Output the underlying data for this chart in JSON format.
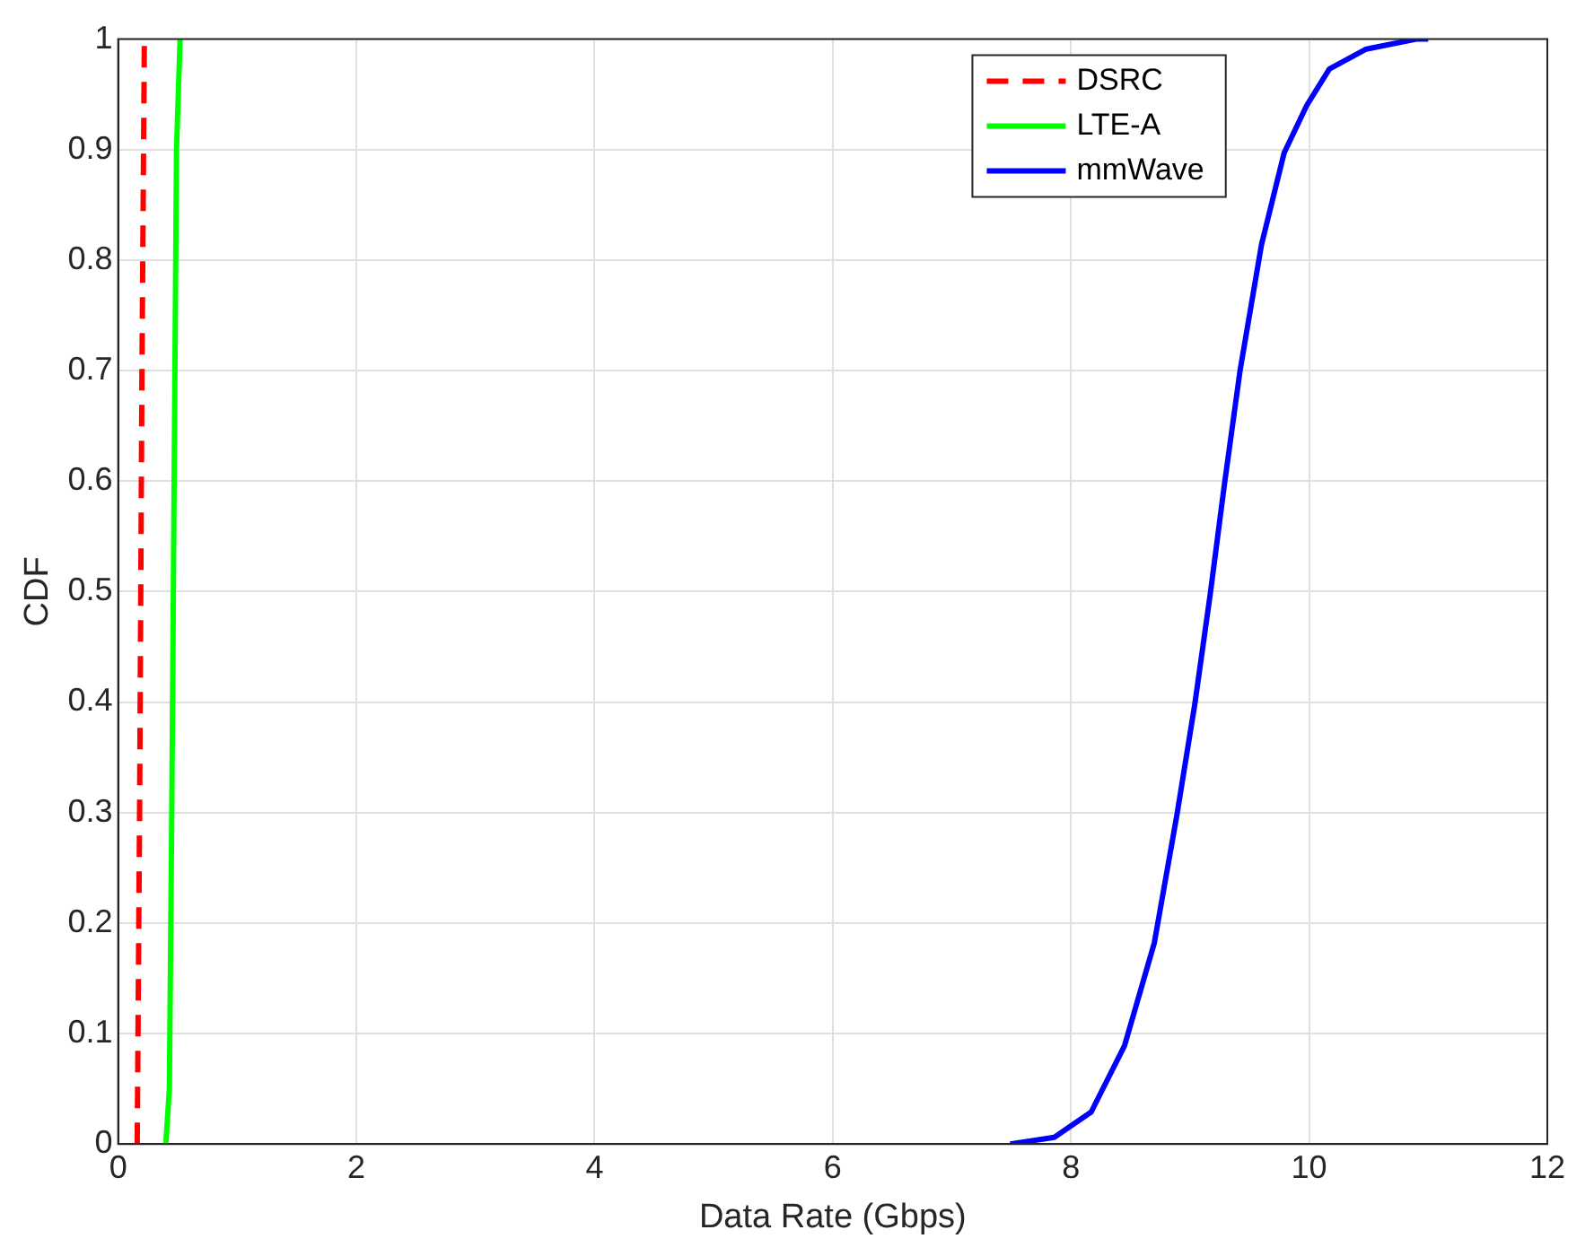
{
  "chart_data": {
    "type": "line",
    "xlabel": "Data Rate (Gbps)",
    "ylabel": "CDF",
    "xlim": [
      0,
      12
    ],
    "xticks": [
      0,
      2,
      4,
      6,
      8,
      10,
      12
    ],
    "ylim": [
      0,
      1
    ],
    "yticks": [
      0,
      0.1,
      0.2,
      0.3,
      0.4,
      0.5,
      0.6,
      0.7,
      0.8,
      0.9,
      1
    ],
    "grid": true,
    "legend": "top right",
    "marker": "none",
    "series": [
      {
        "name": "DSRC",
        "color": "#ff0000",
        "line_style": "dashed",
        "x": [
          0.16,
          0.18,
          0.2,
          0.22
        ],
        "values": [
          0,
          0.3,
          0.7,
          1
        ]
      },
      {
        "name": "LTE-A",
        "color": "#00ff00",
        "line_style": "solid",
        "x": [
          0.4,
          0.43,
          0.45,
          0.47,
          0.49,
          0.52
        ],
        "values": [
          0,
          0.05,
          0.3,
          0.6,
          0.9,
          1
        ]
      },
      {
        "name": "mmWave",
        "color": "#0000ff",
        "line_style": "solid",
        "x": [
          7.49,
          7.86,
          8.17,
          8.45,
          8.7,
          8.89,
          9.04,
          9.17,
          9.29,
          9.42,
          9.6,
          9.79,
          9.98,
          10.17,
          10.48,
          10.9,
          11
        ],
        "values": [
          0,
          0.006,
          0.029,
          0.089,
          0.182,
          0.298,
          0.398,
          0.498,
          0.598,
          0.7,
          0.814,
          0.897,
          0.94,
          0.973,
          0.991,
          1,
          1
        ]
      }
    ]
  }
}
